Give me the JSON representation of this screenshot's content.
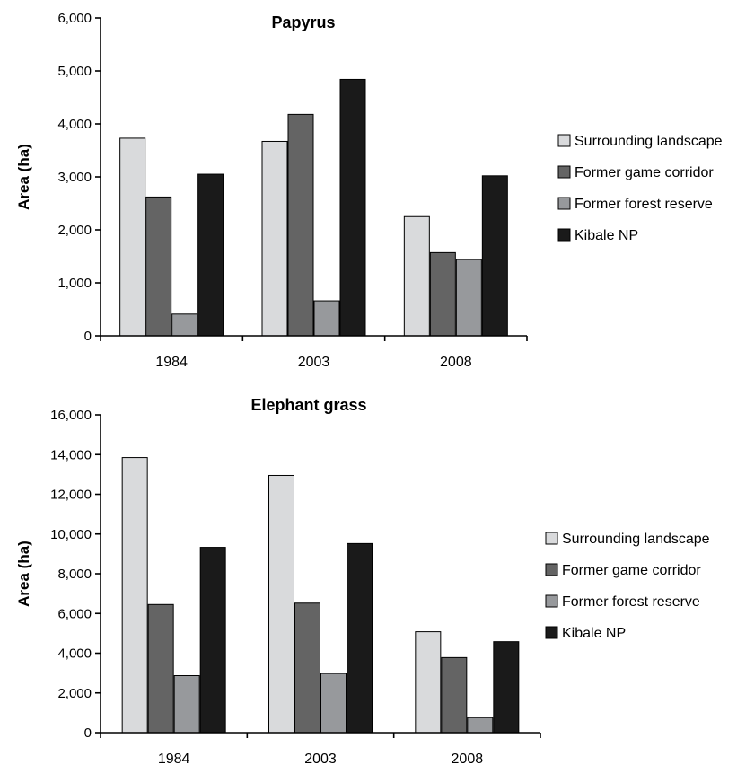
{
  "chart_data": [
    {
      "type": "bar",
      "title": "Papyrus",
      "ylabel": "Area (ha)",
      "xlabel": "",
      "ylim": [
        0,
        6000
      ],
      "yticks": [
        0,
        1000,
        2000,
        3000,
        4000,
        5000,
        6000
      ],
      "ytick_labels": [
        "0",
        "1,000",
        "2,000",
        "3,000",
        "4,000",
        "5,000",
        "6,000"
      ],
      "categories": [
        "1984",
        "2003",
        "2008"
      ],
      "series": [
        {
          "name": "Surrounding landscape",
          "color": "#d9dadc",
          "values": [
            3730,
            3670,
            2250
          ]
        },
        {
          "name": "Former game corridor",
          "color": "#646464",
          "values": [
            2620,
            4180,
            1570
          ]
        },
        {
          "name": "Former forest reserve",
          "color": "#97999c",
          "values": [
            410,
            660,
            1440
          ]
        },
        {
          "name": "Kibale NP",
          "color": "#1a1a1a",
          "values": [
            3050,
            4840,
            3020
          ]
        }
      ],
      "grid": false,
      "legend_position": "right"
    },
    {
      "type": "bar",
      "title": "Elephant grass",
      "ylabel": "Area (ha)",
      "xlabel": "",
      "ylim": [
        0,
        16000
      ],
      "yticks": [
        0,
        2000,
        4000,
        6000,
        8000,
        10000,
        12000,
        14000,
        16000
      ],
      "ytick_labels": [
        "0",
        "2,000",
        "4,000",
        "6,000",
        "8,000",
        "10,000",
        "12,000",
        "14,000",
        "16,000"
      ],
      "categories": [
        "1984",
        "2003",
        "2008"
      ],
      "series": [
        {
          "name": "Surrounding landscape",
          "color": "#d9dadc",
          "values": [
            13850,
            12950,
            5080
          ]
        },
        {
          "name": "Former game corridor",
          "color": "#646464",
          "values": [
            6450,
            6520,
            3780
          ]
        },
        {
          "name": "Former forest reserve",
          "color": "#97999c",
          "values": [
            2870,
            2980,
            760
          ]
        },
        {
          "name": "Kibale NP",
          "color": "#1a1a1a",
          "values": [
            9330,
            9520,
            4580
          ]
        }
      ],
      "grid": false,
      "legend_position": "right"
    }
  ]
}
